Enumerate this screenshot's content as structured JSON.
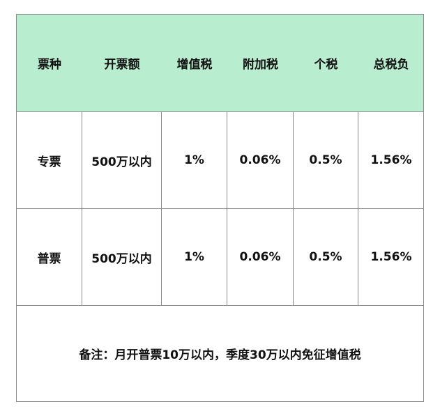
{
  "header_color": "#b9edcf",
  "headers": [
    "票种",
    "开票额",
    "增值税",
    "附加税",
    "个税",
    "总税负"
  ],
  "rows": [
    [
      "专票",
      "500万以内",
      "1%",
      "0.06%",
      "0.5%",
      "1.56%"
    ],
    [
      "普票",
      "500万以内",
      "1%",
      "0.06%",
      "0.5%",
      "1.56%"
    ]
  ],
  "note": "备注：月开普票10万以内，季度30万以内免征增值税"
}
